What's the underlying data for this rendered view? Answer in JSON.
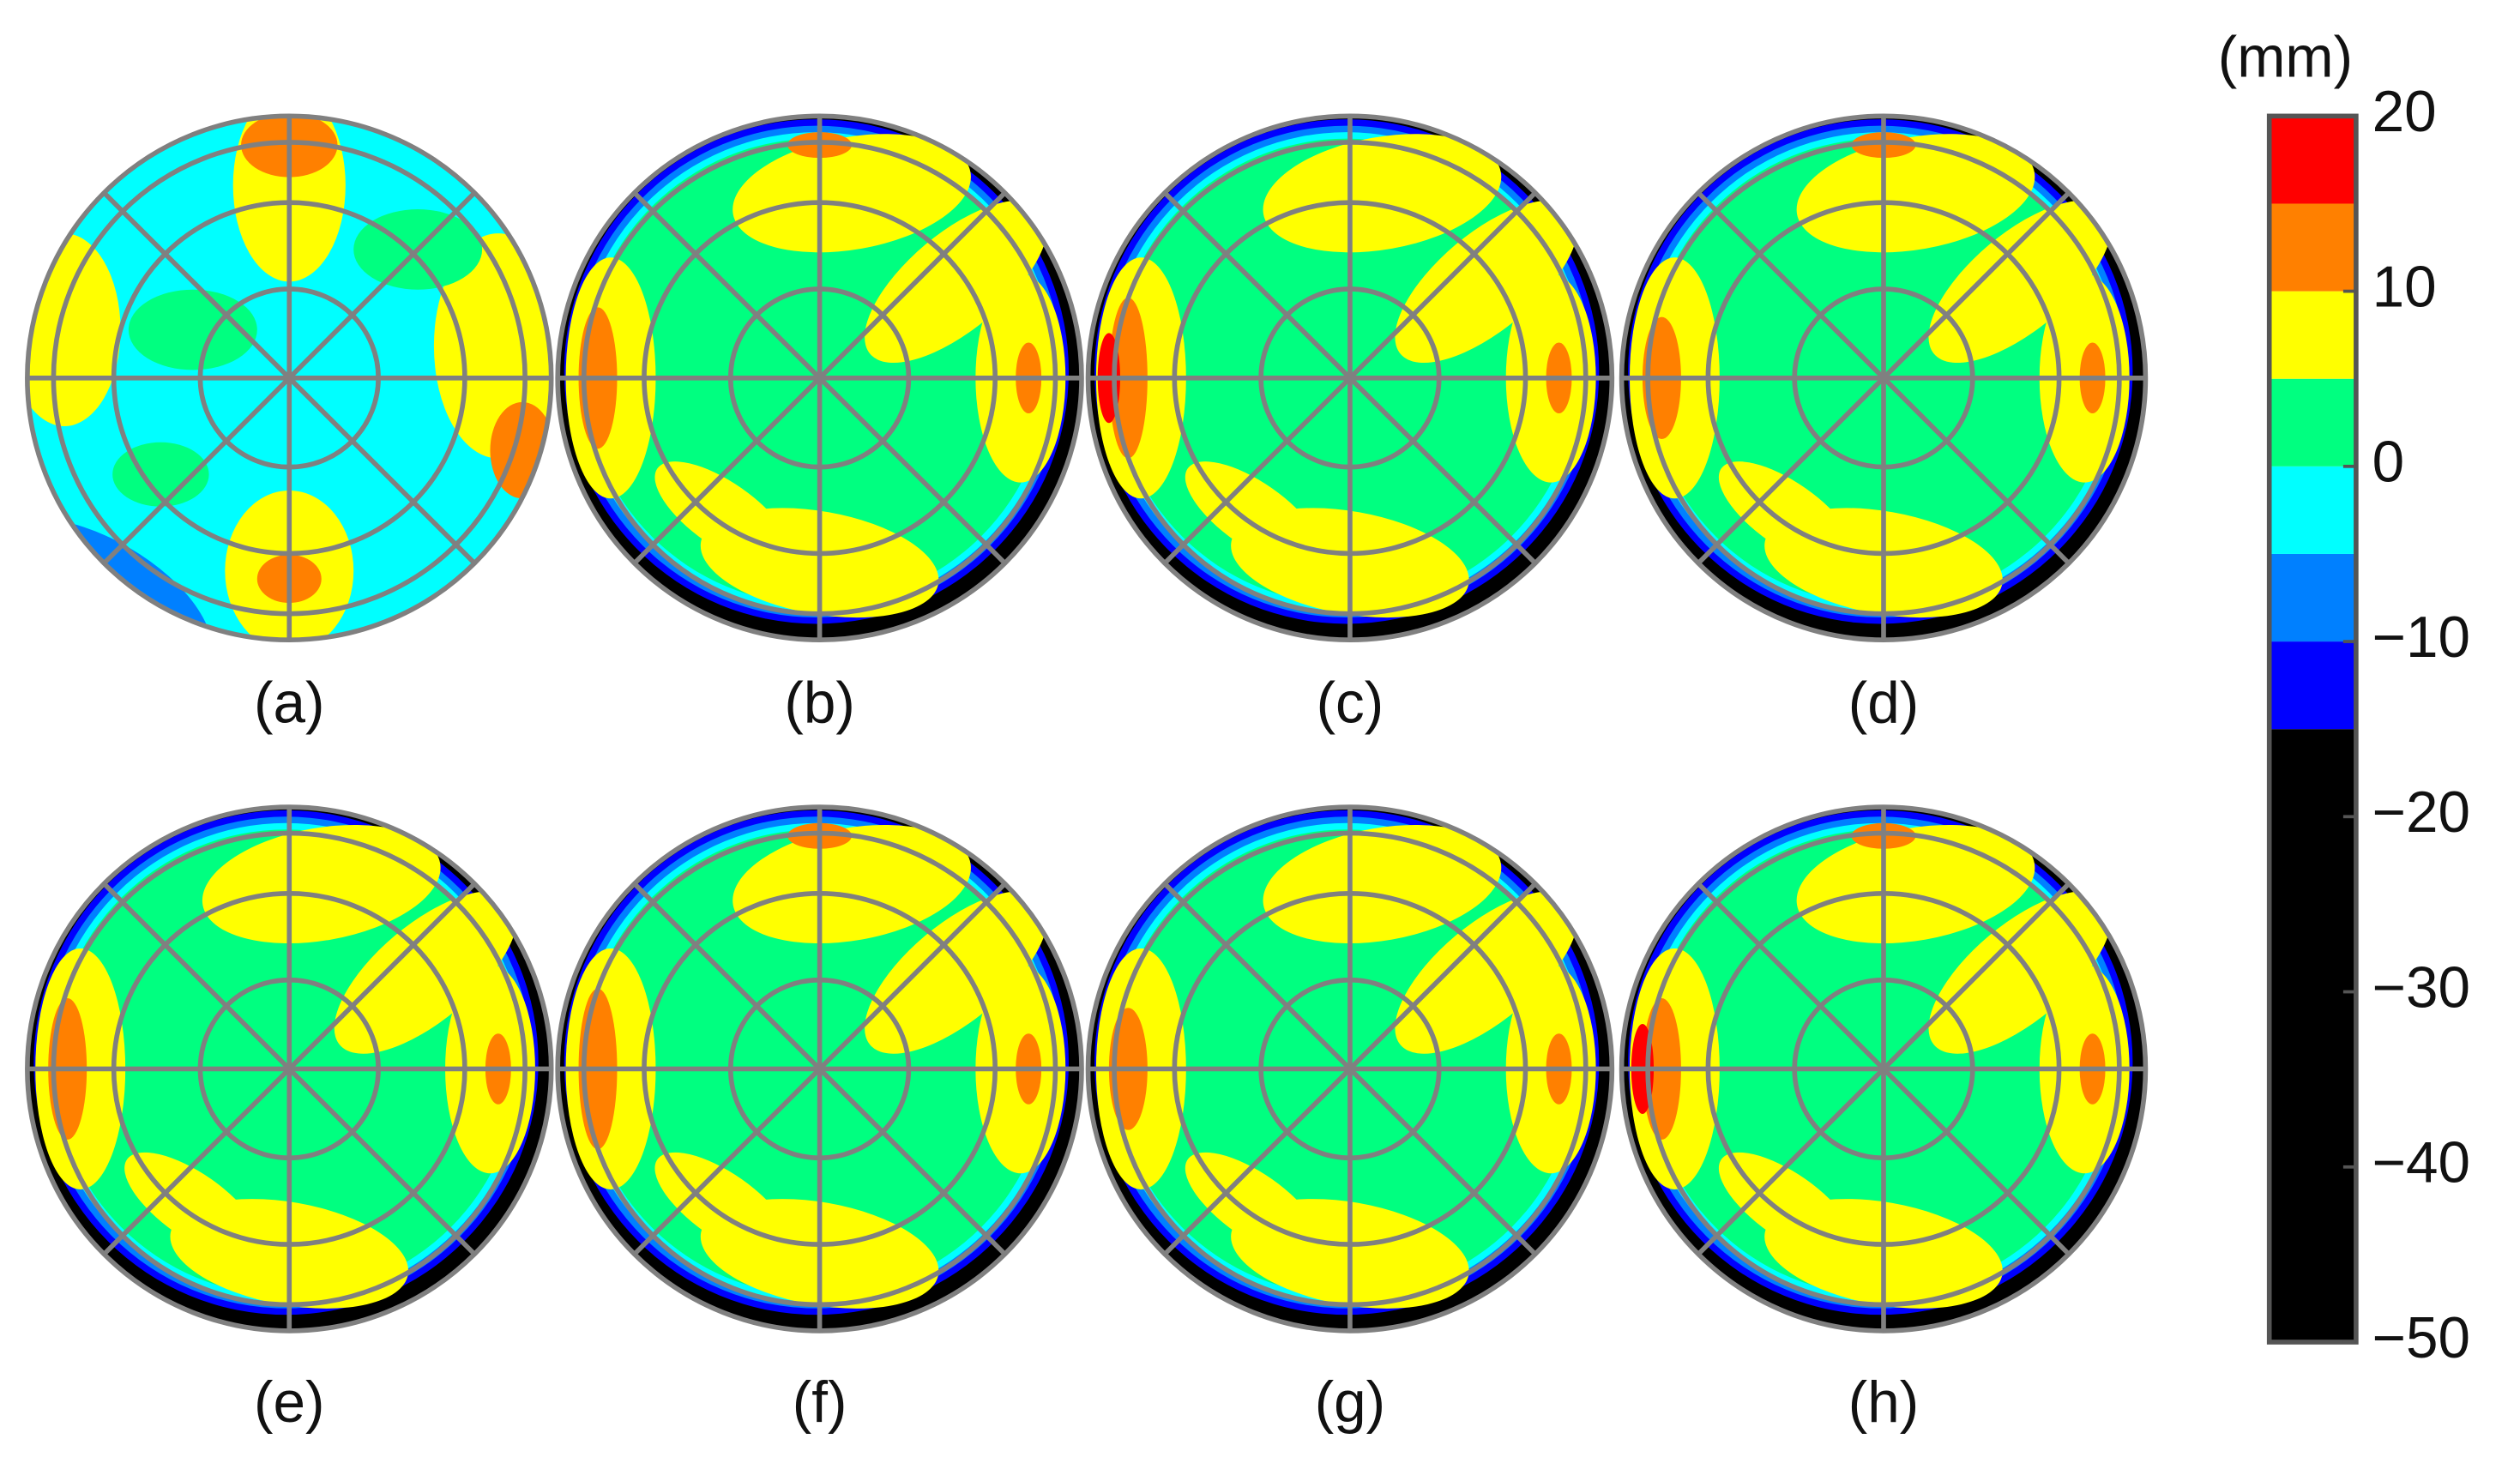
{
  "chart_data": {
    "type": "contour-panels",
    "panels": [
      "(a)",
      "(b)",
      "(c)",
      "(d)",
      "(e)",
      "(f)",
      "(g)",
      "(h)"
    ],
    "colorbar": {
      "label": "(mm)",
      "bins": [
        -50,
        -15,
        -10,
        -5,
        0,
        5,
        10,
        15,
        20
      ],
      "colors": [
        "#000000",
        "#0000ff",
        "#0080ff",
        "#00ffff",
        "#00ff80",
        "#ffff00",
        "#ff8000",
        "#ff0000"
      ],
      "ylim": [
        -50,
        20
      ],
      "yticks": [
        20,
        10,
        0,
        {
          "value": -10,
          "label": "−10"
        },
        {
          "value": -20,
          "label": "−20"
        },
        {
          "value": -30,
          "label": "−30"
        },
        {
          "value": -40,
          "label": "−40"
        },
        {
          "value": -50,
          "label": "−50"
        }
      ]
    }
  }
}
